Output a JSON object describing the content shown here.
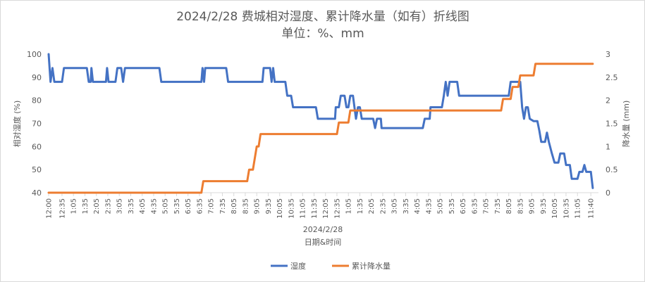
{
  "chart_data": {
    "type": "line",
    "title": "2024/2/28 费城相对湿度、累计降水量（如有）折线图",
    "subtitle": "单位：%、mm",
    "xlabel": "日期&时间",
    "x_group_label": "2024/2/28",
    "y_left_label": "相对湿度 (%)",
    "y_right_label": "降水量 (mm)",
    "y_left_lim": [
      40,
      100
    ],
    "y_left_ticks": [
      "100",
      "90",
      "80",
      "70",
      "60",
      "50",
      "40"
    ],
    "y_right_lim": [
      0,
      3
    ],
    "y_right_ticks": [
      "3",
      "2.5",
      "2",
      "1.5",
      "1",
      "0.5",
      "0"
    ],
    "x_range_minutes": [
      0,
      1440
    ],
    "x_ticks": [
      "12:00",
      "12:35",
      "1:05",
      "1:35",
      "2:05",
      "2:35",
      "3:05",
      "3:35",
      "4:05",
      "4:35",
      "5:05",
      "5:35",
      "6:05",
      "6:35",
      "7:05",
      "7:35",
      "8:05",
      "8:35",
      "9:05",
      "9:35",
      "10:05",
      "10:35",
      "11:05",
      "11:35",
      "12:05",
      "12:35",
      "1:05",
      "1:35",
      "2:05",
      "2:35",
      "3:05",
      "3:35",
      "4:05",
      "4:35",
      "5:05",
      "5:35",
      "6:05",
      "6:35",
      "7:05",
      "7:35",
      "8:05",
      "8:35",
      "9:05",
      "9:35",
      "10:05",
      "10:35",
      "11:05",
      "11:40"
    ],
    "x_tick_minutes": [
      0,
      35,
      65,
      95,
      125,
      155,
      185,
      215,
      245,
      275,
      305,
      335,
      365,
      395,
      425,
      455,
      485,
      515,
      545,
      575,
      605,
      635,
      665,
      695,
      725,
      755,
      785,
      815,
      845,
      875,
      905,
      935,
      965,
      995,
      1025,
      1055,
      1085,
      1115,
      1145,
      1175,
      1205,
      1235,
      1265,
      1295,
      1325,
      1355,
      1385,
      1420
    ],
    "grid": false,
    "legend_position": "bottom",
    "series": [
      {
        "name": "湿度",
        "axis": "left",
        "color": "#4472c4",
        "points": [
          [
            0,
            100
          ],
          [
            5,
            88
          ],
          [
            10,
            94
          ],
          [
            15,
            88
          ],
          [
            35,
            88
          ],
          [
            40,
            94
          ],
          [
            100,
            94
          ],
          [
            105,
            88
          ],
          [
            110,
            88
          ],
          [
            112,
            94
          ],
          [
            116,
            88
          ],
          [
            150,
            88
          ],
          [
            153,
            94
          ],
          [
            157,
            88
          ],
          [
            175,
            88
          ],
          [
            180,
            94
          ],
          [
            190,
            94
          ],
          [
            195,
            88
          ],
          [
            200,
            94
          ],
          [
            290,
            94
          ],
          [
            295,
            88
          ],
          [
            400,
            88
          ],
          [
            403,
            94
          ],
          [
            407,
            88
          ],
          [
            410,
            94
          ],
          [
            465,
            94
          ],
          [
            470,
            88
          ],
          [
            560,
            88
          ],
          [
            563,
            94
          ],
          [
            580,
            94
          ],
          [
            584,
            88
          ],
          [
            588,
            94
          ],
          [
            592,
            88
          ],
          [
            620,
            88
          ],
          [
            625,
            82
          ],
          [
            635,
            82
          ],
          [
            640,
            77
          ],
          [
            700,
            77
          ],
          [
            705,
            72
          ],
          [
            750,
            72
          ],
          [
            752,
            77
          ],
          [
            760,
            77
          ],
          [
            765,
            82
          ],
          [
            775,
            82
          ],
          [
            780,
            77
          ],
          [
            785,
            77
          ],
          [
            790,
            82
          ],
          [
            797,
            82
          ],
          [
            805,
            72
          ],
          [
            810,
            77
          ],
          [
            815,
            77
          ],
          [
            820,
            72
          ],
          [
            850,
            72
          ],
          [
            855,
            68
          ],
          [
            860,
            72
          ],
          [
            870,
            72
          ],
          [
            872,
            68
          ],
          [
            980,
            68
          ],
          [
            985,
            72
          ],
          [
            998,
            72
          ],
          [
            1000,
            77
          ],
          [
            1030,
            77
          ],
          [
            1035,
            82
          ],
          [
            1040,
            88
          ],
          [
            1045,
            82
          ],
          [
            1050,
            88
          ],
          [
            1070,
            88
          ],
          [
            1075,
            82
          ],
          [
            1205,
            82
          ],
          [
            1210,
            88
          ],
          [
            1235,
            88
          ],
          [
            1240,
            77
          ],
          [
            1245,
            72
          ],
          [
            1250,
            77
          ],
          [
            1255,
            77
          ],
          [
            1260,
            72
          ],
          [
            1270,
            71
          ],
          [
            1280,
            71
          ],
          [
            1285,
            67
          ],
          [
            1290,
            62
          ],
          [
            1300,
            62
          ],
          [
            1305,
            66
          ],
          [
            1310,
            62
          ],
          [
            1318,
            57
          ],
          [
            1325,
            53
          ],
          [
            1335,
            53
          ],
          [
            1340,
            57
          ],
          [
            1345,
            57
          ],
          [
            1350,
            57
          ],
          [
            1355,
            52
          ],
          [
            1365,
            52
          ],
          [
            1370,
            46
          ],
          [
            1385,
            46
          ],
          [
            1390,
            49
          ],
          [
            1398,
            49
          ],
          [
            1403,
            52
          ],
          [
            1408,
            49
          ],
          [
            1420,
            49
          ],
          [
            1425,
            42
          ]
        ]
      },
      {
        "name": "累计降水量",
        "axis": "right",
        "color": "#ed7d31",
        "points": [
          [
            0,
            0
          ],
          [
            400,
            0
          ],
          [
            405,
            0.25
          ],
          [
            520,
            0.25
          ],
          [
            525,
            0.5
          ],
          [
            535,
            0.5
          ],
          [
            540,
            0.75
          ],
          [
            545,
            1.0
          ],
          [
            550,
            1.0
          ],
          [
            555,
            1.27
          ],
          [
            755,
            1.27
          ],
          [
            760,
            1.52
          ],
          [
            785,
            1.52
          ],
          [
            790,
            1.78
          ],
          [
            1185,
            1.78
          ],
          [
            1190,
            2.03
          ],
          [
            1210,
            2.03
          ],
          [
            1215,
            2.29
          ],
          [
            1230,
            2.29
          ],
          [
            1235,
            2.54
          ],
          [
            1270,
            2.54
          ],
          [
            1275,
            2.79
          ],
          [
            1425,
            2.79
          ]
        ]
      }
    ]
  }
}
